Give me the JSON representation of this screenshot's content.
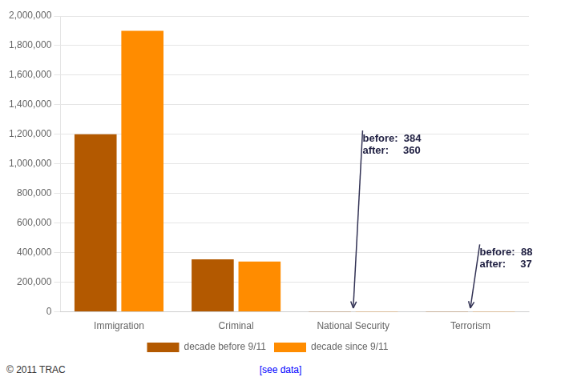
{
  "chart_data": {
    "type": "bar",
    "categories": [
      "Immigration",
      "Criminal",
      "National Security",
      "Terrorism"
    ],
    "series": [
      {
        "name": "decade before 9/11",
        "color": "#b35900",
        "values": [
          1200000,
          355000,
          384,
          88
        ]
      },
      {
        "name": "decade since 9/11",
        "color": "#ff8c00",
        "values": [
          1900000,
          340000,
          360,
          37
        ]
      }
    ],
    "ylim": [
      0,
      2000000
    ],
    "yticks": [
      0,
      {
        "value": 200000,
        "label": "200,000"
      },
      {
        "value": 400000,
        "label": "400,000"
      },
      {
        "value": 600000,
        "label": "600,000"
      },
      {
        "value": 800000,
        "label": "800,000"
      },
      {
        "value": 1000000,
        "label": "1,000,000"
      },
      {
        "value": 1200000,
        "label": "1,200,000"
      },
      {
        "value": 1400000,
        "label": "1,400,000"
      },
      {
        "value": 1600000,
        "label": "1,600,000"
      },
      {
        "value": 1800000,
        "label": "1,800,000"
      },
      {
        "value": 2000000,
        "label": "2,000,000"
      }
    ],
    "grid": true,
    "legend": "bottom",
    "annotations": [
      {
        "text": "before:  384\nafter:     360",
        "category": "National Security",
        "y": 1150000,
        "arrow_y": 25000
      },
      {
        "text": "before:  88\nafter:     37",
        "category": "Terrorism",
        "y": 380000,
        "arrow_y": 25000
      }
    ],
    "footnotes": [
      "© 2011 TRAC",
      "[see data]"
    ]
  }
}
